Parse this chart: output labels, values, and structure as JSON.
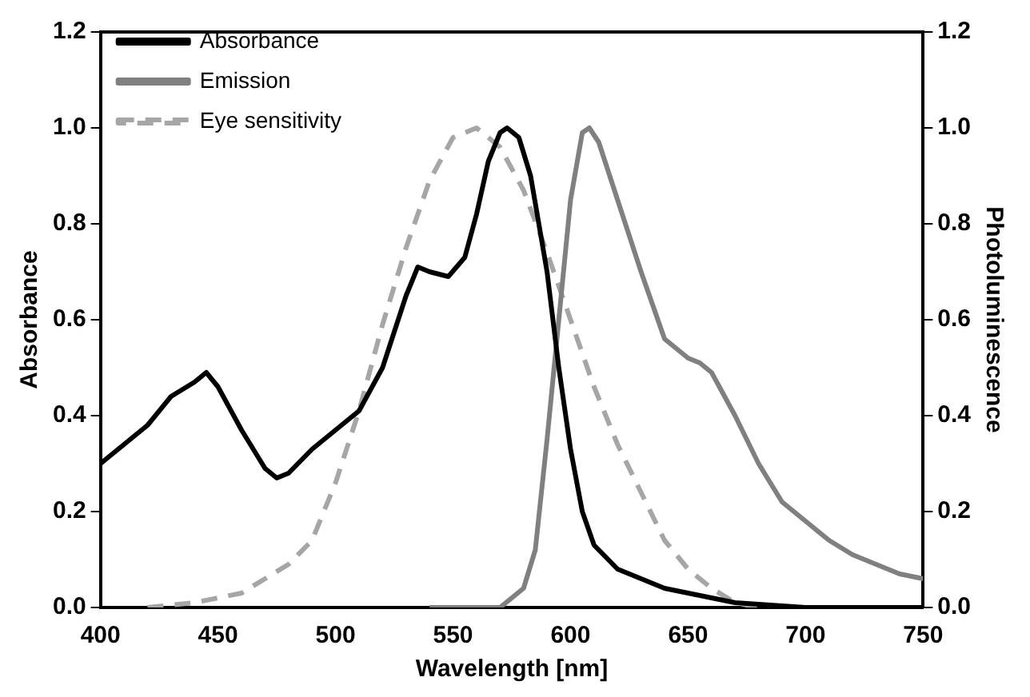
{
  "chart_data": {
    "type": "line",
    "xlabel": "Wavelength [nm]",
    "ylabel": "Absorbance",
    "y2label": "Photoluminescence",
    "xlim": [
      400,
      750
    ],
    "xticks": [
      400,
      450,
      500,
      550,
      600,
      650,
      700,
      750
    ],
    "ylim": [
      0,
      1.2
    ],
    "yticks": [
      {
        "value": 0,
        "label": "0.0"
      },
      0.2,
      0.4,
      0.6,
      0.8,
      {
        "value": 1,
        "label": "1.0"
      },
      1.2
    ],
    "y2lim": [
      0,
      1.2
    ],
    "y2ticks": [
      {
        "value": 0,
        "label": "0.0"
      },
      0.2,
      0.4,
      0.6,
      0.8,
      {
        "value": 1,
        "label": "1.0"
      },
      1.2
    ],
    "grid": false,
    "legend": "top left",
    "marker": "none",
    "series": [
      {
        "name": "Absorbance",
        "color": "#000000",
        "line_style": "solid",
        "x": [
          400,
          410,
          420,
          430,
          440,
          445,
          450,
          460,
          470,
          475,
          480,
          490,
          500,
          510,
          520,
          530,
          535,
          540,
          548,
          555,
          560,
          565,
          570,
          573,
          578,
          583,
          590,
          595,
          600,
          605,
          610,
          620,
          630,
          640,
          650,
          660,
          670,
          700,
          750
        ],
        "values": [
          0.3,
          0.34,
          0.38,
          0.44,
          0.47,
          0.49,
          0.46,
          0.37,
          0.29,
          0.27,
          0.28,
          0.33,
          0.37,
          0.41,
          0.5,
          0.65,
          0.71,
          0.7,
          0.69,
          0.73,
          0.82,
          0.93,
          0.99,
          1.0,
          0.98,
          0.9,
          0.7,
          0.5,
          0.33,
          0.2,
          0.13,
          0.08,
          0.06,
          0.04,
          0.03,
          0.02,
          0.01,
          0.0,
          0.0
        ]
      },
      {
        "name": "Emission",
        "color": "#808080",
        "line_style": "solid",
        "x": [
          540,
          570,
          580,
          585,
          590,
          595,
          600,
          605,
          608,
          612,
          620,
          630,
          640,
          650,
          655,
          660,
          670,
          680,
          690,
          700,
          710,
          720,
          730,
          740,
          750
        ],
        "values": [
          0.0,
          0.0,
          0.04,
          0.12,
          0.35,
          0.6,
          0.85,
          0.99,
          1.0,
          0.97,
          0.85,
          0.7,
          0.56,
          0.52,
          0.51,
          0.49,
          0.4,
          0.3,
          0.22,
          0.18,
          0.14,
          0.11,
          0.09,
          0.07,
          0.06
        ]
      },
      {
        "name": "Eye sensitivity",
        "color": "#a6a6a6",
        "line_style": "dashed",
        "x": [
          420,
          440,
          460,
          480,
          490,
          500,
          510,
          520,
          530,
          540,
          550,
          560,
          570,
          580,
          590,
          600,
          610,
          620,
          630,
          640,
          650,
          660,
          670,
          680,
          750
        ],
        "values": [
          0.0,
          0.01,
          0.03,
          0.09,
          0.14,
          0.26,
          0.41,
          0.59,
          0.75,
          0.89,
          0.98,
          1.0,
          0.96,
          0.87,
          0.74,
          0.6,
          0.46,
          0.34,
          0.24,
          0.14,
          0.08,
          0.04,
          0.01,
          0.0,
          0.0
        ]
      }
    ]
  }
}
